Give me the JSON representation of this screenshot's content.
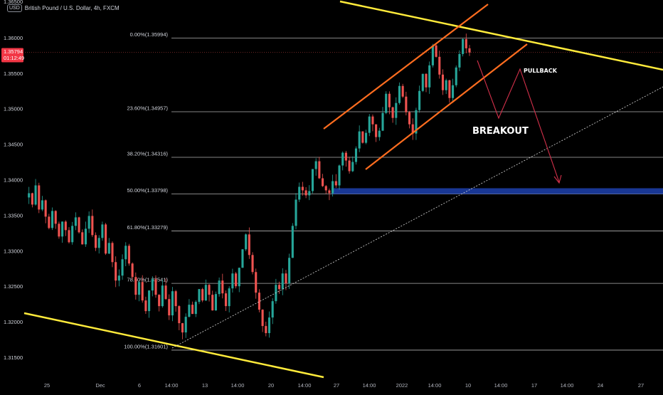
{
  "header": {
    "currency": "USD",
    "symbol_title": "British Pound / U.S. Dollar, 4h, FXCM"
  },
  "price_badge": {
    "price": "1.35794",
    "countdown": "01:12:49"
  },
  "colors": {
    "background": "#000000",
    "bull_candle": "#26a69a",
    "bear_candle": "#ef5350",
    "trend_line": "#ffeb3b",
    "channel": "#ff6d1f",
    "arrow": "#d2304a",
    "support_zone": "#1a3a9c",
    "fib_line": "#cfcfcf",
    "price_badge": "#f23645"
  },
  "chart_data": {
    "type": "candlestick",
    "y_axis": {
      "range": [
        1.3142,
        1.3645
      ],
      "ticks": [
        "1.31500",
        "1.32000",
        "1.32500",
        "1.33000",
        "1.33500",
        "1.34000",
        "1.34500",
        "1.35000",
        "1.35500",
        "1.36000"
      ],
      "top_partial": "1.36500"
    },
    "x_axis": {
      "ticks": [
        "25",
        "Dec",
        "6",
        "14:00",
        "13",
        "14:00",
        "20",
        "14:00",
        "27",
        "14:00",
        "2022",
        "14:00",
        "10",
        "14:00",
        "17",
        "14:00",
        "24",
        "27"
      ]
    },
    "fibonacci": [
      {
        "label": "0.00%(1.35994)",
        "price": 1.35994
      },
      {
        "label": "23.60%(1.34957)",
        "price": 1.34957
      },
      {
        "label": "38.20%(1.34316)",
        "price": 1.34316
      },
      {
        "label": "50.00%(1.33798)",
        "price": 1.33798
      },
      {
        "label": "61.80%(1.33279)",
        "price": 1.33279
      },
      {
        "label": "78.60%(1.32541)",
        "price": 1.32541
      },
      {
        "label": "100.00%(1.31601)",
        "price": 1.31601
      }
    ],
    "current_price": 1.35794,
    "annotations": {
      "breakout": "BREAKOUT",
      "pullback": "PULLBACK"
    },
    "price_path": [
      1.3375,
      1.3381,
      1.3365,
      1.3392,
      1.3358,
      1.3371,
      1.3348,
      1.3332,
      1.3356,
      1.3338,
      1.332,
      1.3341,
      1.3329,
      1.3312,
      1.3335,
      1.3347,
      1.3326,
      1.3309,
      1.3331,
      1.3349,
      1.3322,
      1.3304,
      1.3318,
      1.3337,
      1.3296,
      1.3311,
      1.3284,
      1.3258,
      1.3265,
      1.3288,
      1.3307,
      1.3282,
      1.3263,
      1.3238,
      1.3256,
      1.323,
      1.3215,
      1.3244,
      1.326,
      1.3238,
      1.3222,
      1.3251,
      1.3232,
      1.3209,
      1.3243,
      1.3222,
      1.3198,
      1.3185,
      1.3207,
      1.3224,
      1.3211,
      1.3228,
      1.3246,
      1.323,
      1.3252,
      1.3238,
      1.3216,
      1.3239,
      1.3258,
      1.324,
      1.3222,
      1.3247,
      1.3268,
      1.325,
      1.3276,
      1.3302,
      1.3323,
      1.3294,
      1.327,
      1.3241,
      1.3217,
      1.3194,
      1.3184,
      1.3206,
      1.3229,
      1.3252,
      1.3246,
      1.3268,
      1.3254,
      1.329,
      1.3335,
      1.3372,
      1.339,
      1.3385,
      1.3378,
      1.3384,
      1.3415,
      1.3426,
      1.3402,
      1.3391,
      1.3385,
      1.3381,
      1.3398,
      1.3392,
      1.342,
      1.3438,
      1.3427,
      1.3412,
      1.3425,
      1.3444,
      1.3468,
      1.3452,
      1.3466,
      1.3489,
      1.3478,
      1.346,
      1.3469,
      1.3494,
      1.3521,
      1.3502,
      1.3487,
      1.3508,
      1.3532,
      1.3517,
      1.3495,
      1.3478,
      1.3465,
      1.3498,
      1.3525,
      1.3549,
      1.353,
      1.3561,
      1.3589,
      1.3573,
      1.3548,
      1.3526,
      1.354,
      1.3515,
      1.3533,
      1.3558,
      1.3577,
      1.3598,
      1.3585,
      1.3579
    ]
  }
}
